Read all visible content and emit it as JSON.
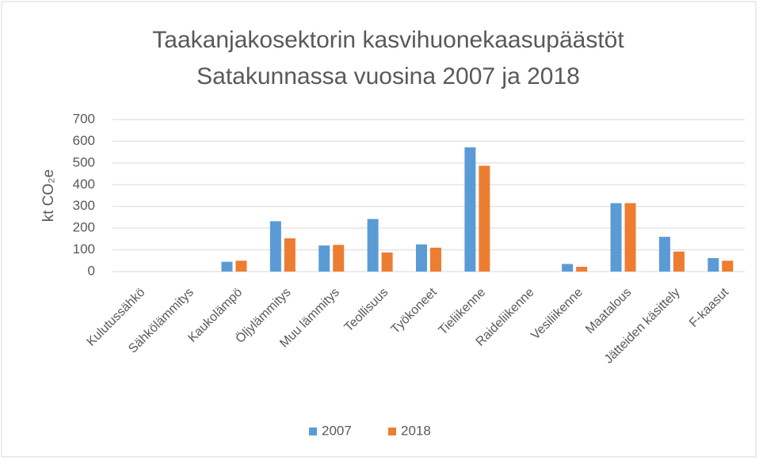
{
  "chart_data": {
    "type": "bar",
    "title": [
      "Taakanjakosektorin kasvihuonekaasupäästöt",
      "Satakunnassa vuosina 2007 ja 2018"
    ],
    "y_label": "kt CO₂e",
    "categories": [
      "Kulutussähkö",
      "Sähkölämmitys",
      "Kaukolämpö",
      "Öljylämmitys",
      "Muu lämmitys",
      "Teollisuus",
      "Työkoneet",
      "Tieliikenne",
      "Raideliikenne",
      "Vesiliikenne",
      "Maatalous",
      "Jätteiden käsittely",
      "F-kaasut"
    ],
    "series": [
      {
        "name": "2007",
        "color": "#5b9bd5",
        "values": [
          0,
          0,
          45,
          232,
          120,
          242,
          125,
          572,
          0,
          35,
          315,
          160,
          62
        ]
      },
      {
        "name": "2018",
        "color": "#ed7d31",
        "values": [
          0,
          0,
          50,
          153,
          123,
          88,
          110,
          487,
          0,
          22,
          315,
          92,
          50
        ]
      }
    ],
    "ylim": [
      0,
      700
    ],
    "yticks": [
      0,
      100,
      200,
      300,
      400,
      500,
      600,
      700
    ],
    "grid": true,
    "legend": "bottom"
  }
}
